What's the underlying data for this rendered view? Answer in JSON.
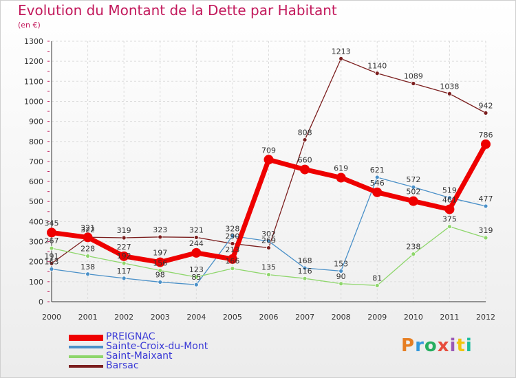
{
  "header": {
    "title": "Evolution du Montant de la Dette par Habitant",
    "subtitle": "(en €)"
  },
  "logo": {
    "text": "Proxiti",
    "colors": [
      "#e67e22",
      "#3498db",
      "#27ae60",
      "#e74c3c",
      "#9b59b6",
      "#f1c40f",
      "#1abc9c"
    ]
  },
  "chart_data": {
    "type": "line",
    "title": "Evolution du Montant de la Dette par Habitant",
    "subtitle": "(en €)",
    "ylim": [
      0,
      1300
    ],
    "yticks": [
      0,
      100,
      200,
      300,
      400,
      500,
      600,
      700,
      800,
      900,
      1000,
      1100,
      1200,
      1300
    ],
    "x": [
      "2000",
      "2001",
      "2002",
      "2003",
      "2004",
      "2005",
      "2006",
      "2007",
      "2008",
      "2009",
      "2010",
      "2011",
      "2012"
    ],
    "grid": true,
    "legend": "bottom-left",
    "series": [
      {
        "name": "Barsac",
        "color": "#7b1e1e",
        "width": 1.3,
        "marker": 3,
        "values": [
          191,
          322,
          319,
          323,
          321,
          290,
          269,
          808,
          1213,
          1140,
          1089,
          1038,
          942
        ]
      },
      {
        "name": "Sainte-Croix-du-Mont",
        "color": "#4a90c8",
        "width": 1.3,
        "marker": 3,
        "values": [
          163,
          138,
          117,
          98,
          85,
          328,
          302,
          168,
          153,
          621,
          572,
          519,
          477
        ]
      },
      {
        "name": "Saint-Maixant",
        "color": "#8ed66b",
        "width": 1.3,
        "marker": 3,
        "values": [
          267,
          228,
          192,
          156,
          123,
          166,
          135,
          116,
          90,
          81,
          238,
          375,
          319
        ]
      },
      {
        "name": "PREIGNAC",
        "color": "#ee0000",
        "width": 7,
        "marker": 7,
        "values": [
          345,
          321,
          227,
          197,
          244,
          213,
          709,
          660,
          619,
          546,
          502,
          461,
          786
        ]
      }
    ],
    "legend_order": [
      "PREIGNAC",
      "Sainte-Croix-du-Mont",
      "Saint-Maixant",
      "Barsac"
    ]
  }
}
